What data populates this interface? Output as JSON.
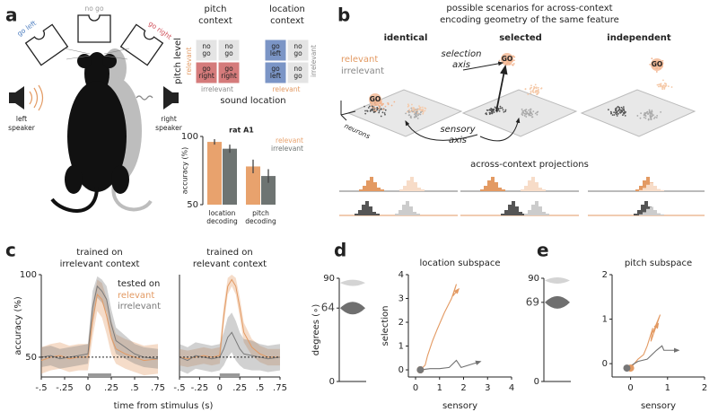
{
  "panel_labels": [
    "a",
    "b",
    "c",
    "d",
    "e"
  ],
  "panel_a": {
    "doors": [
      "go left",
      "no go",
      "go right"
    ],
    "speakers": [
      [
        "left",
        "speaker"
      ],
      [
        "right",
        "speaker"
      ]
    ],
    "context_titles": [
      [
        "pitch",
        "context"
      ],
      [
        "location",
        "context"
      ]
    ],
    "pitch_cells": [
      [
        "no",
        "go"
      ],
      [
        "no",
        "go"
      ],
      [
        "go",
        "right"
      ],
      [
        "go",
        "right"
      ]
    ],
    "location_cells": [
      [
        "go",
        "left"
      ],
      [
        "no",
        "go"
      ],
      [
        "go",
        "left"
      ],
      [
        "no",
        "go"
      ]
    ],
    "pitch_level": "pitch level",
    "sound_location": "sound location",
    "pitch_relevant": "relevant",
    "pitch_irrelevant": "irrelevant",
    "location_irrelevant": "irrelevant",
    "location_relevant": "relevant"
  },
  "panel_b": {
    "title": [
      "possible scenarios for across-context",
      "encoding geometry of the same feature"
    ],
    "scenarios": [
      "identical",
      "selected",
      "independent"
    ],
    "legend": [
      "relevant",
      "irrelevant"
    ],
    "selection_axis": [
      "selection",
      "axis"
    ],
    "sensory_axis": [
      "sensory",
      "axis"
    ],
    "go": "GO",
    "neurons": "neurons",
    "projections_title": "across-context projections"
  },
  "panel_c": {
    "x_label": "time from stimulus (s)"
  },
  "chart_data": [
    {
      "type": "bar",
      "title": "rat A1",
      "y_label": "accuracy (%)",
      "categories": [
        [
          "location",
          "decoding"
        ],
        [
          "pitch",
          "decoding"
        ]
      ],
      "series": [
        {
          "name": "relevant",
          "color": "#e8a26d",
          "values": [
            96,
            78
          ],
          "errors": [
            2,
            5
          ]
        },
        {
          "name": "irrelevant",
          "color": "#6e7472",
          "values": [
            91,
            71
          ],
          "errors": [
            3,
            5
          ]
        }
      ],
      "ylim": [
        50,
        100
      ],
      "yticks": [
        50,
        100
      ]
    },
    {
      "type": "line",
      "title": [
        "trained on",
        "irrelevant context"
      ],
      "y_label": "accuracy (%)",
      "legend_title": "tested on",
      "x": [
        -0.5,
        -0.4,
        -0.3,
        -0.2,
        -0.1,
        0,
        0.05,
        0.1,
        0.15,
        0.2,
        0.25,
        0.3,
        0.4,
        0.5,
        0.6,
        0.75
      ],
      "series": [
        {
          "name": "relevant",
          "color": "#e39a63",
          "values": [
            48,
            50,
            51,
            49,
            50,
            50,
            72,
            88,
            85,
            75,
            62,
            55,
            52,
            50,
            48,
            49
          ],
          "lower": [
            40,
            42,
            43,
            41,
            42,
            42,
            62,
            78,
            74,
            64,
            52,
            46,
            43,
            41,
            39,
            40
          ],
          "upper": [
            56,
            58,
            59,
            57,
            58,
            58,
            82,
            97,
            95,
            86,
            72,
            64,
            61,
            59,
            57,
            58
          ]
        },
        {
          "name": "irrelevant",
          "color": "#7a7a7a",
          "values": [
            50,
            51,
            49,
            50,
            51,
            52,
            80,
            93,
            90,
            85,
            70,
            60,
            56,
            52,
            50,
            49
          ],
          "lower": [
            44,
            45,
            43,
            44,
            45,
            46,
            70,
            86,
            83,
            77,
            61,
            52,
            49,
            46,
            44,
            43
          ],
          "upper": [
            56,
            57,
            55,
            56,
            57,
            58,
            90,
            99,
            97,
            93,
            79,
            68,
            63,
            58,
            56,
            55
          ]
        }
      ],
      "xlim": [
        -0.5,
        0.75
      ],
      "xticks": [
        {
          "value": -0.5,
          "label": "-.5"
        },
        {
          "value": -0.25,
          "label": "-.25"
        },
        0,
        {
          "value": 0.25,
          "label": ".25"
        },
        {
          "value": 0.5,
          "label": ".5"
        },
        {
          "value": 0.75,
          "label": ".75"
        }
      ],
      "ylim": [
        38,
        100
      ],
      "yticks": [
        50,
        100
      ],
      "chance": 50,
      "stimulus": [
        0,
        0.25
      ]
    },
    {
      "type": "line",
      "title": [
        "trained on",
        "relevant context"
      ],
      "x": [
        -0.5,
        -0.4,
        -0.3,
        -0.2,
        -0.1,
        0,
        0.05,
        0.1,
        0.15,
        0.2,
        0.25,
        0.3,
        0.4,
        0.5,
        0.6,
        0.75
      ],
      "series": [
        {
          "color": "#e39a63",
          "values": [
            50,
            49,
            50,
            51,
            50,
            51,
            75,
            93,
            97,
            93,
            80,
            65,
            56,
            52,
            50,
            50
          ],
          "lower": [
            45,
            44,
            45,
            46,
            45,
            46,
            69,
            88,
            93,
            88,
            74,
            59,
            51,
            47,
            45,
            45
          ],
          "upper": [
            55,
            54,
            55,
            56,
            55,
            56,
            81,
            98,
            100,
            98,
            86,
            71,
            61,
            57,
            55,
            55
          ]
        },
        {
          "color": "#7a7a7a",
          "values": [
            50,
            48,
            51,
            50,
            49,
            50,
            55,
            62,
            65,
            60,
            55,
            52,
            51,
            50,
            49,
            50
          ],
          "lower": [
            42,
            40,
            43,
            42,
            41,
            42,
            45,
            50,
            53,
            48,
            45,
            43,
            42,
            42,
            41,
            42
          ],
          "upper": [
            58,
            56,
            59,
            58,
            57,
            58,
            65,
            74,
            77,
            72,
            65,
            61,
            60,
            58,
            57,
            58
          ]
        }
      ],
      "xlim": [
        -0.5,
        0.75
      ],
      "xticks": [
        {
          "value": -0.5,
          "label": "-.5"
        },
        {
          "value": -0.25,
          "label": "-.25"
        },
        0,
        {
          "value": 0.25,
          "label": ".25"
        },
        {
          "value": 0.5,
          "label": ".5"
        },
        {
          "value": 0.75,
          "label": ".75"
        }
      ],
      "ylim": [
        38,
        100
      ],
      "chance": 50,
      "stimulus": [
        0,
        0.25
      ]
    },
    {
      "type": "violin",
      "y_label": "degrees (∘)",
      "values": [
        86,
        64
      ],
      "colors": [
        "#d4d4d4",
        "#6f6f6f"
      ],
      "ylim": [
        0,
        90
      ],
      "yticks": [
        0,
        64,
        90
      ]
    },
    {
      "type": "line",
      "title": "location subspace",
      "x_label": "sensory",
      "y_label": "selection",
      "series": [
        {
          "color": "#e39a63",
          "x": [
            0.2,
            0.4,
            0.5,
            0.7,
            0.9,
            1.2,
            1.5,
            1.7,
            1.55,
            1.8
          ],
          "values": [
            0,
            0.2,
            0.6,
            1.2,
            1.7,
            2.4,
            3.0,
            3.6,
            3.1,
            3.4
          ]
        },
        {
          "color": "#707070",
          "x": [
            0.2,
            0.6,
            1.0,
            1.4,
            1.7,
            1.9,
            2.7
          ],
          "values": [
            0,
            0.05,
            0.05,
            0.1,
            0.4,
            0.1,
            0.35
          ]
        }
      ],
      "xlim": [
        -0.3,
        4
      ],
      "xticks": [
        0,
        1,
        2,
        3,
        4
      ],
      "ylim": [
        -0.3,
        4
      ],
      "yticks": [
        0,
        1,
        2,
        3,
        4
      ]
    },
    {
      "type": "violin",
      "values": [
        88,
        69
      ],
      "colors": [
        "#d4d4d4",
        "#6f6f6f"
      ],
      "ylim": [
        0,
        90
      ],
      "yticks": [
        0,
        69,
        90
      ]
    },
    {
      "type": "line",
      "title": "pitch subspace",
      "x_label": "sensory",
      "series": [
        {
          "color": "#e39a63",
          "x": [
            0,
            0.1,
            0.2,
            0.35,
            0.45,
            0.6,
            0.55,
            0.8,
            0.6,
            0.75
          ],
          "values": [
            -0.1,
            0,
            0.1,
            0.2,
            0.4,
            0.8,
            0.5,
            1.1,
            0.7,
            0.9
          ]
        },
        {
          "color": "#707070",
          "x": [
            -0.1,
            0.2,
            0.45,
            0.7,
            0.85,
            0.9,
            1.3
          ],
          "values": [
            -0.1,
            0.05,
            0.1,
            0.3,
            0.4,
            0.3,
            0.3
          ]
        }
      ],
      "xlim": [
        -0.5,
        2
      ],
      "xticks": [
        0,
        1,
        2
      ],
      "ylim": [
        -0.3,
        2
      ],
      "yticks": [
        0,
        1,
        2
      ]
    }
  ]
}
